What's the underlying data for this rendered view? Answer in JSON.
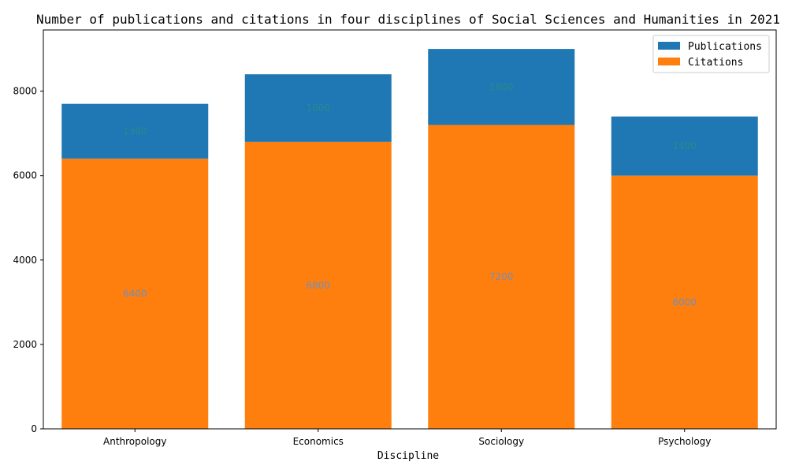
{
  "chart_data": {
    "type": "bar",
    "stacked": true,
    "title": "Number of publications and citations in four disciplines of Social Sciences and Humanities in 2021",
    "xlabel": "Discipline",
    "ylabel": "",
    "categories": [
      "Anthropology",
      "Economics",
      "Sociology",
      "Psychology"
    ],
    "ylim": [
      0,
      9450
    ],
    "yticks": [
      0,
      2000,
      4000,
      6000,
      8000
    ],
    "series": [
      {
        "name": "Citations",
        "values": [
          6400,
          6800,
          7200,
          6000
        ],
        "color": "#ff7f0e",
        "label_color": "#6f8fbf"
      },
      {
        "name": "Publications",
        "values": [
          1300,
          1600,
          1800,
          1400
        ],
        "color": "#1f77b4",
        "label_color": "#2a8a8a"
      }
    ],
    "legend": {
      "placement": "top-right",
      "order": [
        "Publications",
        "Citations"
      ]
    },
    "grid": false
  }
}
